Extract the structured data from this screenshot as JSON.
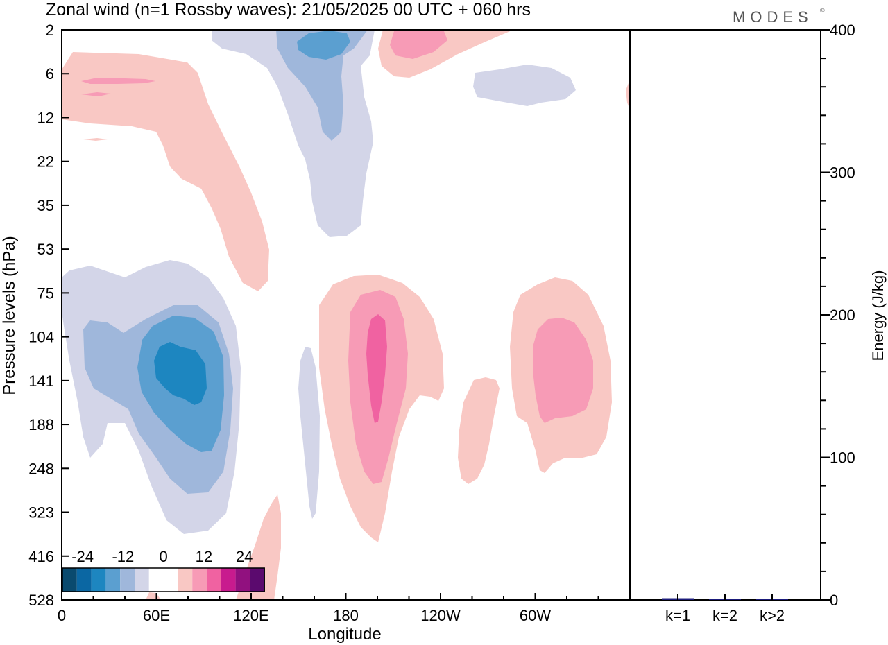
{
  "title": "Zonal wind (n=1 Rossby waves):  21/05/2025  00 UTC  + 060 hrs",
  "brand": "MODES",
  "brand_mark": "©",
  "colors": {
    "neg": [
      "#0a4a6e",
      "#0b67a3",
      "#1d86c0",
      "#5b9fd0",
      "#9fb7db",
      "#d3d5e8"
    ],
    "zero": "#ffffff",
    "pos": [
      "#f9c8c4",
      "#f79bb6",
      "#f062a1",
      "#c81b8e",
      "#91117f",
      "#5b0a6e"
    ]
  },
  "chart_data": [
    {
      "type": "heatmap",
      "title": "Zonal wind (n=1 Rossby waves):  21/05/2025  00 UTC  + 060 hrs",
      "xlabel": "Longitude",
      "ylabel": "Pressure levels (hPa)",
      "x_ticks": [
        "0",
        "60E",
        "120E",
        "180",
        "120W",
        "60W"
      ],
      "x_tick_degrees": [
        0,
        60,
        120,
        180,
        240,
        300
      ],
      "x_range_degrees": [
        0,
        360
      ],
      "y_ticks": [
        "2",
        "6",
        "12",
        "22",
        "35",
        "53",
        "75",
        "104",
        "141",
        "188",
        "248",
        "323",
        "416",
        "528"
      ],
      "colorbar": {
        "labels": [
          "-24",
          "-12",
          "0",
          "12",
          "24"
        ],
        "levels": [
          -24,
          -12,
          0,
          12,
          24
        ]
      },
      "features": [
        {
          "sign": "negative",
          "center_lon": 75,
          "center_hPa": 141,
          "peak": "below -18"
        },
        {
          "sign": "negative",
          "center_lon": 165,
          "center_hPa": 3,
          "peak": "about -12"
        },
        {
          "sign": "negative",
          "center_lon": 262,
          "center_hPa": 8,
          "peak": "about -4"
        },
        {
          "sign": "positive",
          "center_lon": 193,
          "center_hPa": 141,
          "peak": "about 14"
        },
        {
          "sign": "positive",
          "center_lon": 310,
          "center_hPa": 141,
          "peak": "about 10"
        },
        {
          "sign": "positive",
          "center_lon": 60,
          "center_hPa": 12,
          "peak": "about 6"
        },
        {
          "sign": "positive",
          "center_lon": 210,
          "center_hPa": 3,
          "peak": "about 8"
        },
        {
          "sign": "positive",
          "center_lon": 250,
          "center_hPa": 188,
          "peak": "about 4"
        },
        {
          "sign": "positive",
          "center_lon": 128,
          "center_hPa": 416,
          "peak": "about 4"
        }
      ]
    },
    {
      "type": "bar",
      "ylabel": "Energy (J/kg)",
      "ylim": [
        0,
        400
      ],
      "y_ticks": [
        "0",
        "100",
        "200",
        "300",
        "400"
      ],
      "categories": [
        "k=1",
        "k=2",
        "k>2"
      ],
      "values": [
        1.2,
        0.2,
        0.3
      ],
      "bar_color": "#1a1a7a"
    }
  ]
}
